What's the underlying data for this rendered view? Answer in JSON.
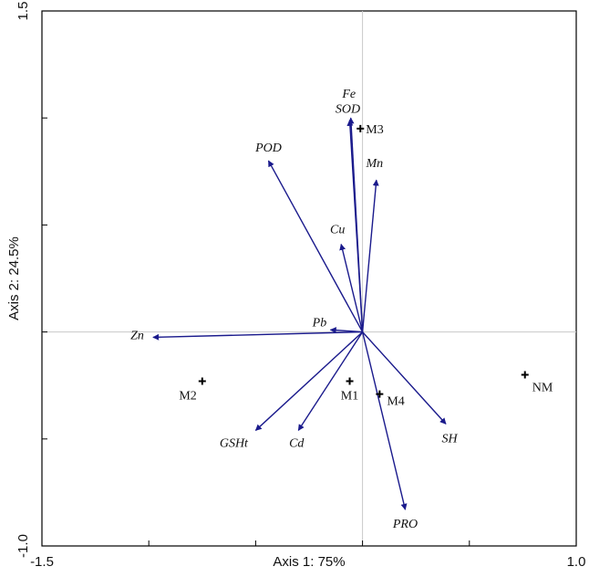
{
  "chart_data": {
    "type": "scatter",
    "subtype": "biplot",
    "xlabel": "Axis 1: 75%",
    "ylabel": "Axis 2: 24.5%",
    "xlim": [
      -1.5,
      1.0
    ],
    "ylim": [
      -1.0,
      1.5
    ],
    "x_ticks": [
      "-1.5",
      "1.0"
    ],
    "y_ticks": [
      "1.5",
      "-1.0"
    ],
    "grid": false,
    "reference_lines": [
      0,
      0
    ],
    "colors": {
      "arrow": "#1a1a8c",
      "frame": "#000000",
      "refline": "#c8c8c8",
      "point": "#000000"
    },
    "vectors": [
      {
        "name": "Fe",
        "x": -0.055,
        "y": 1.0
      },
      {
        "name": "SOD",
        "x": -0.06,
        "y": 0.99
      },
      {
        "name": "POD",
        "x": -0.44,
        "y": 0.8
      },
      {
        "name": "Mn",
        "x": 0.065,
        "y": 0.71
      },
      {
        "name": "Cu",
        "x": -0.1,
        "y": 0.41
      },
      {
        "name": "Pb",
        "x": -0.15,
        "y": 0.01
      },
      {
        "name": "Zn",
        "x": -0.98,
        "y": -0.025
      },
      {
        "name": "GSHt",
        "x": -0.5,
        "y": -0.46
      },
      {
        "name": "Cd",
        "x": -0.3,
        "y": -0.46
      },
      {
        "name": "SH",
        "x": 0.39,
        "y": -0.43
      },
      {
        "name": "PRO",
        "x": 0.2,
        "y": -0.83
      }
    ],
    "points": [
      {
        "name": "M3",
        "x": -0.01,
        "y": 0.95
      },
      {
        "name": "M2",
        "x": -0.75,
        "y": -0.23
      },
      {
        "name": "M1",
        "x": -0.06,
        "y": -0.23
      },
      {
        "name": "M4",
        "x": 0.08,
        "y": -0.29
      },
      {
        "name": "NM",
        "x": 0.76,
        "y": -0.2
      }
    ]
  }
}
